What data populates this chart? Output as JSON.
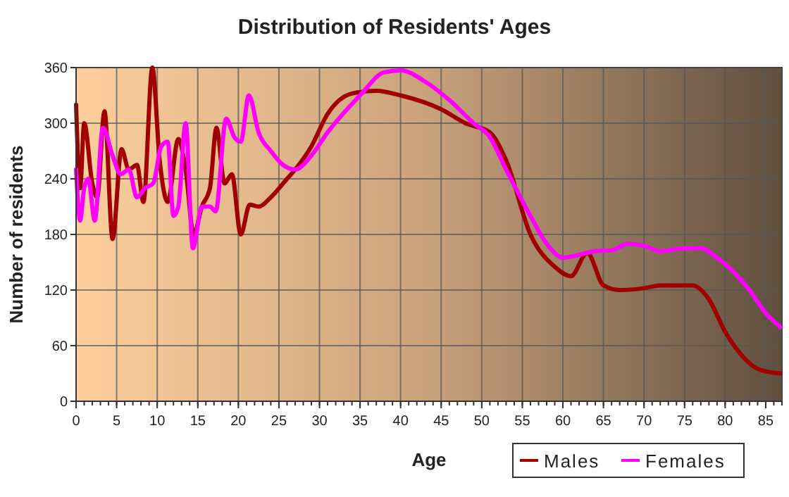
{
  "chart_data": {
    "type": "line",
    "title": "Distribution of Residents' Ages",
    "xlabel": "Age",
    "ylabel": "Number of residents",
    "xlim": [
      0,
      87
    ],
    "xticks": [
      0,
      5,
      10,
      15,
      20,
      25,
      30,
      35,
      40,
      45,
      50,
      55,
      60,
      65,
      70,
      75,
      80,
      85
    ],
    "ylim": [
      0,
      360
    ],
    "yticks": [
      0,
      60,
      120,
      180,
      240,
      300,
      360
    ],
    "grid": true,
    "legend": "bottom right",
    "line_style": "solid",
    "series": [
      {
        "name": "Males",
        "color": "#a00000",
        "x": [
          0,
          0.5,
          1,
          2,
          2.6,
          3.5,
          4.5,
          5.6,
          6.5,
          7.5,
          8.3,
          9.4,
          10.3,
          11.3,
          12.6,
          13.5,
          14.5,
          15.5,
          16.5,
          17.3,
          18.3,
          19.2,
          20.3,
          21.4,
          22.5,
          24,
          26,
          27,
          29,
          31,
          34,
          37,
          40,
          45,
          48,
          51,
          53,
          56,
          59,
          61,
          63,
          65,
          67,
          70,
          72,
          76,
          78,
          80,
          82,
          84,
          86.8
        ],
        "values": [
          320,
          230,
          300,
          235,
          220,
          313,
          175,
          272,
          250,
          255,
          215,
          360,
          260,
          215,
          283,
          250,
          180,
          210,
          230,
          295,
          235,
          245,
          180,
          212,
          210,
          220,
          240,
          250,
          275,
          310,
          332,
          335,
          330,
          315,
          300,
          290,
          260,
          180,
          145,
          135,
          160,
          125,
          120,
          122,
          125,
          125,
          110,
          75,
          50,
          35,
          30
        ]
      },
      {
        "name": "Females",
        "color": "#ff00ff",
        "x": [
          0,
          0.5,
          1,
          1.5,
          2.3,
          3.3,
          4.5,
          5.5,
          6.5,
          7.5,
          8.5,
          9.5,
          10.5,
          11.3,
          12,
          12.6,
          13.5,
          14.4,
          15.5,
          16.5,
          17.2,
          18.5,
          19.5,
          20.3,
          21.3,
          22.5,
          24,
          25.5,
          27,
          29,
          31,
          35,
          38,
          40,
          43,
          46,
          49,
          51,
          53,
          56,
          58,
          60,
          62,
          64,
          66,
          68,
          70,
          72,
          75,
          77,
          79,
          81,
          83,
          85,
          86.8
        ],
        "values": [
          250,
          195,
          230,
          240,
          195,
          295,
          265,
          245,
          250,
          220,
          230,
          235,
          275,
          280,
          200,
          210,
          300,
          165,
          210,
          210,
          205,
          305,
          285,
          280,
          330,
          290,
          270,
          255,
          250,
          265,
          290,
          330,
          355,
          357,
          345,
          325,
          300,
          285,
          250,
          200,
          170,
          155,
          158,
          162,
          163,
          170,
          168,
          162,
          165,
          165,
          155,
          140,
          120,
          95,
          80
        ]
      }
    ]
  }
}
